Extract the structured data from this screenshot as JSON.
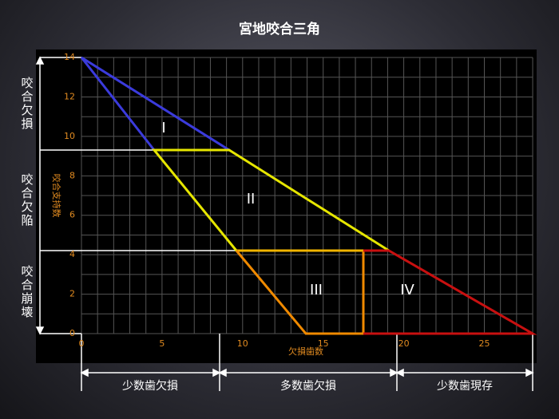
{
  "header": {
    "title": "宮地咬合三角"
  },
  "y_axis": {
    "label": "咬合支持数",
    "ticks": [
      0,
      2,
      4,
      6,
      8,
      10,
      12,
      14
    ]
  },
  "x_axis": {
    "label": "欠損歯数",
    "ticks": [
      0,
      5,
      10,
      15,
      20,
      25
    ]
  },
  "regions": [
    {
      "label": "I"
    },
    {
      "label": "II"
    },
    {
      "label": "III"
    },
    {
      "label": "IV"
    }
  ],
  "left_labels": [
    "咬合欠損",
    "咬合欠陥",
    "咬合崩壊"
  ],
  "bottom_labels": [
    "少数歯欠損",
    "多数歯欠損",
    "少数歯現存"
  ]
}
